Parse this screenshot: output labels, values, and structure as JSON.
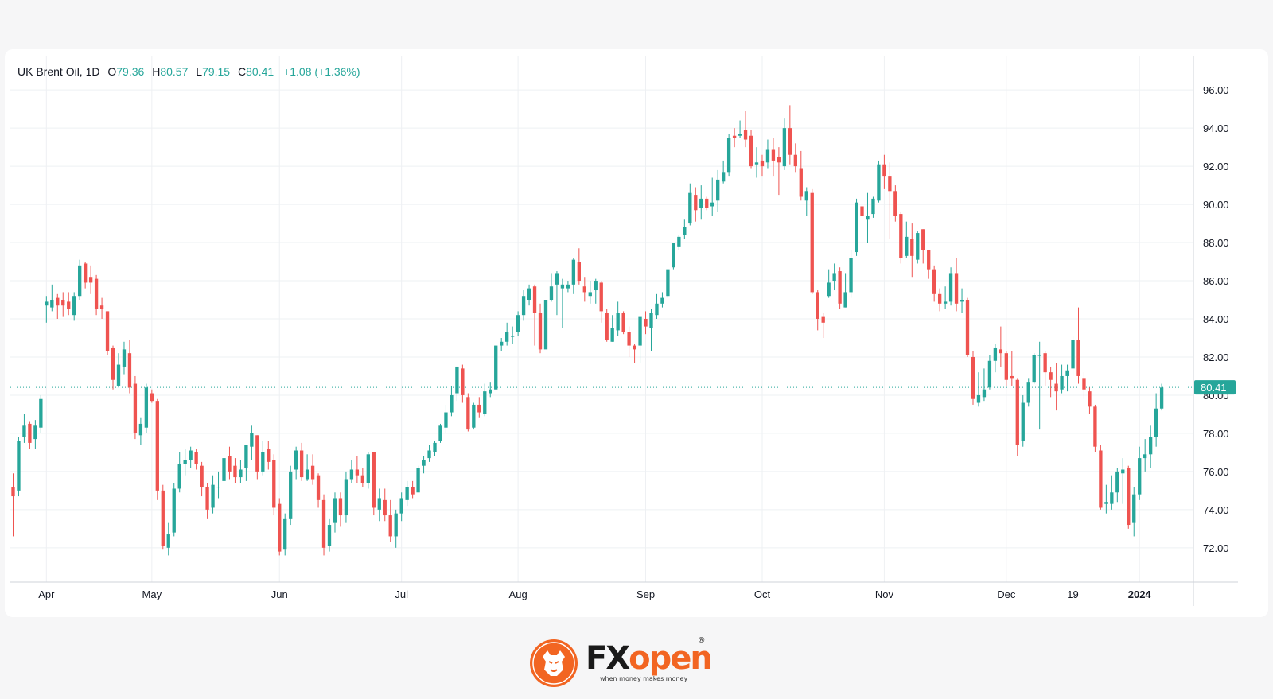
{
  "legend": {
    "symbol": "UK Brent Oil, 1D",
    "o_label": "O",
    "o_value": "79.36",
    "h_label": "H",
    "h_value": "80.57",
    "l_label": "L",
    "l_value": "79.15",
    "c_label": "C",
    "c_value": "80.41",
    "change": "+1.08 (+1.36%)"
  },
  "brand": {
    "name_part1": "FX",
    "name_part2": "open",
    "registered": "®",
    "tagline": "when money makes money"
  },
  "colors": {
    "up": "#26a69a",
    "down": "#ef5350",
    "brand_orange": "#f26522",
    "last_price_line": "#26a69a"
  },
  "chart_data": {
    "type": "candlestick",
    "ylim": [
      70.2,
      97.8
    ],
    "y_ticks": [
      "72.00",
      "74.00",
      "76.00",
      "78.00",
      "80.00",
      "82.00",
      "84.00",
      "86.00",
      "88.00",
      "90.00",
      "92.00",
      "94.00",
      "96.00"
    ],
    "x_ticks": [
      {
        "label": "Apr",
        "index": 6
      },
      {
        "label": "May",
        "index": 25
      },
      {
        "label": "Jun",
        "index": 48
      },
      {
        "label": "Jul",
        "index": 70
      },
      {
        "label": "Aug",
        "index": 91
      },
      {
        "label": "Sep",
        "index": 114
      },
      {
        "label": "Oct",
        "index": 135
      },
      {
        "label": "Nov",
        "index": 157
      },
      {
        "label": "Dec",
        "index": 179
      },
      {
        "label": "19",
        "index": 191
      },
      {
        "label": "2024",
        "index": 203
      }
    ],
    "last_price": 80.41,
    "last_price_label": "80.41",
    "grid": true,
    "candles": [
      [
        75.2,
        74.7,
        75.9,
        72.6
      ],
      [
        75.0,
        77.6,
        77.8,
        74.7
      ],
      [
        77.8,
        78.4,
        79.0,
        77.5
      ],
      [
        78.5,
        77.5,
        78.6,
        77.2
      ],
      [
        77.7,
        78.4,
        78.7,
        77.2
      ],
      [
        78.3,
        79.8,
        80.0,
        78.0
      ],
      [
        84.7,
        84.9,
        85.2,
        83.8
      ],
      [
        84.6,
        85.0,
        85.8,
        84.4
      ],
      [
        85.1,
        84.7,
        85.3,
        84.0
      ],
      [
        85.0,
        84.7,
        85.4,
        84.1
      ],
      [
        84.9,
        84.5,
        85.4,
        84.2
      ],
      [
        84.2,
        85.2,
        85.4,
        83.9
      ],
      [
        85.2,
        86.8,
        87.1,
        85.0
      ],
      [
        86.9,
        85.9,
        87.0,
        85.6
      ],
      [
        86.2,
        85.9,
        86.8,
        85.3
      ],
      [
        86.1,
        84.5,
        86.3,
        84.2
      ],
      [
        84.7,
        84.5,
        85.1,
        84.0
      ],
      [
        84.4,
        82.3,
        84.4,
        82.1
      ],
      [
        82.5,
        80.8,
        82.6,
        80.3
      ],
      [
        80.5,
        81.6,
        82.2,
        80.4
      ],
      [
        81.5,
        82.4,
        82.8,
        81.1
      ],
      [
        82.2,
        80.4,
        82.9,
        80.1
      ],
      [
        80.6,
        78.0,
        81.0,
        77.7
      ],
      [
        77.9,
        78.5,
        78.8,
        77.4
      ],
      [
        78.3,
        80.4,
        80.6,
        78.0
      ],
      [
        80.1,
        79.7,
        80.3,
        79.6
      ],
      [
        79.7,
        75.0,
        79.8,
        74.5
      ],
      [
        75.0,
        72.1,
        75.3,
        71.9
      ],
      [
        72.0,
        72.7,
        73.3,
        71.6
      ],
      [
        72.8,
        75.1,
        75.4,
        72.6
      ],
      [
        75.1,
        76.4,
        77.0,
        74.9
      ],
      [
        76.4,
        76.6,
        77.2,
        75.8
      ],
      [
        76.6,
        77.1,
        77.3,
        76.2
      ],
      [
        77.0,
        76.4,
        77.2,
        76.1
      ],
      [
        76.3,
        75.2,
        76.5,
        74.7
      ],
      [
        75.2,
        74.0,
        75.4,
        73.5
      ],
      [
        74.1,
        75.3,
        75.8,
        73.8
      ],
      [
        75.2,
        75.2,
        76.0,
        74.6
      ],
      [
        75.5,
        76.7,
        77.0,
        74.5
      ],
      [
        76.8,
        76.0,
        77.3,
        75.6
      ],
      [
        76.3,
        75.7,
        76.7,
        75.4
      ],
      [
        75.7,
        76.1,
        76.6,
        75.4
      ],
      [
        76.2,
        77.4,
        77.4,
        75.5
      ],
      [
        77.3,
        78.0,
        78.4,
        76.6
      ],
      [
        77.9,
        76.0,
        77.9,
        75.6
      ],
      [
        76.0,
        77.0,
        77.6,
        75.8
      ],
      [
        77.2,
        76.5,
        77.6,
        76.1
      ],
      [
        76.6,
        74.1,
        76.9,
        73.7
      ],
      [
        74.3,
        71.8,
        74.6,
        71.6
      ],
      [
        71.9,
        73.5,
        73.8,
        71.6
      ],
      [
        73.5,
        76.0,
        76.3,
        73.2
      ],
      [
        76.1,
        77.1,
        77.3,
        75.6
      ],
      [
        77.1,
        75.7,
        77.5,
        75.5
      ],
      [
        75.6,
        76.1,
        76.9,
        75.5
      ],
      [
        76.3,
        75.6,
        76.9,
        75.3
      ],
      [
        75.8,
        74.5,
        75.9,
        74.1
      ],
      [
        74.5,
        72.0,
        74.8,
        71.6
      ],
      [
        72.1,
        73.2,
        73.5,
        71.8
      ],
      [
        73.3,
        74.6,
        74.9,
        72.8
      ],
      [
        74.6,
        73.7,
        74.9,
        73.1
      ],
      [
        73.7,
        75.6,
        76.0,
        73.3
      ],
      [
        75.6,
        76.1,
        76.6,
        75.4
      ],
      [
        76.1,
        75.8,
        76.8,
        75.4
      ],
      [
        75.8,
        75.4,
        76.2,
        75.2
      ],
      [
        75.4,
        76.9,
        77.0,
        75.1
      ],
      [
        77.0,
        74.1,
        77.0,
        73.7
      ],
      [
        74.0,
        74.6,
        75.1,
        73.4
      ],
      [
        74.5,
        73.7,
        75.1,
        73.4
      ],
      [
        73.7,
        72.6,
        74.5,
        72.3
      ],
      [
        72.6,
        73.8,
        74.0,
        72.0
      ],
      [
        73.8,
        74.6,
        74.9,
        73.4
      ],
      [
        74.5,
        75.2,
        75.5,
        74.2
      ],
      [
        75.2,
        74.8,
        75.5,
        74.6
      ],
      [
        74.9,
        76.2,
        76.3,
        74.9
      ],
      [
        76.3,
        76.6,
        76.8,
        75.9
      ],
      [
        76.7,
        77.1,
        77.4,
        76.5
      ],
      [
        77.0,
        77.5,
        77.6,
        76.8
      ],
      [
        77.6,
        78.4,
        78.5,
        77.5
      ],
      [
        78.3,
        79.1,
        79.5,
        78.0
      ],
      [
        79.1,
        80.0,
        80.5,
        78.9
      ],
      [
        80.1,
        81.5,
        81.5,
        79.7
      ],
      [
        81.4,
        80.0,
        81.6,
        79.6
      ],
      [
        79.9,
        78.2,
        80.1,
        78.1
      ],
      [
        78.3,
        79.5,
        79.6,
        78.2
      ],
      [
        79.5,
        79.1,
        79.9,
        78.8
      ],
      [
        79.0,
        80.2,
        80.6,
        78.9
      ],
      [
        80.1,
        80.3,
        80.7,
        79.9
      ],
      [
        80.3,
        82.6,
        82.6,
        80.3
      ],
      [
        82.6,
        82.8,
        83.0,
        82.3
      ],
      [
        82.8,
        83.3,
        83.8,
        82.6
      ],
      [
        83.1,
        83.1,
        83.6,
        82.7
      ],
      [
        83.3,
        84.2,
        84.4,
        83.1
      ],
      [
        84.2,
        85.2,
        85.5,
        83.9
      ],
      [
        85.0,
        85.6,
        85.8,
        84.7
      ],
      [
        85.7,
        84.3,
        85.8,
        82.6
      ],
      [
        84.3,
        82.4,
        84.8,
        82.2
      ],
      [
        82.4,
        85.0,
        85.0,
        82.5
      ],
      [
        85.0,
        85.7,
        86.4,
        84.9
      ],
      [
        85.8,
        86.4,
        86.5,
        84.2
      ],
      [
        85.6,
        85.8,
        86.1,
        83.5
      ],
      [
        85.6,
        85.8,
        86.0,
        85.4
      ],
      [
        85.8,
        87.1,
        87.2,
        85.3
      ],
      [
        87.0,
        86.0,
        87.7,
        85.8
      ],
      [
        85.7,
        85.4,
        86.2,
        84.9
      ],
      [
        85.2,
        85.4,
        86.0,
        84.8
      ],
      [
        85.5,
        86.0,
        86.1,
        84.8
      ],
      [
        85.9,
        84.4,
        86.0,
        83.8
      ],
      [
        84.3,
        82.9,
        84.5,
        82.8
      ],
      [
        82.8,
        83.5,
        84.2,
        82.8
      ],
      [
        83.4,
        84.3,
        84.9,
        83.1
      ],
      [
        84.3,
        83.3,
        84.4,
        83.2
      ],
      [
        83.3,
        82.6,
        83.6,
        82.0
      ],
      [
        82.6,
        82.4,
        82.7,
        81.7
      ],
      [
        82.6,
        84.1,
        84.1,
        81.7
      ],
      [
        84.0,
        83.6,
        84.4,
        83.2
      ],
      [
        83.5,
        84.3,
        84.5,
        82.3
      ],
      [
        84.2,
        84.8,
        85.3,
        84.0
      ],
      [
        84.8,
        85.1,
        85.4,
        84.6
      ],
      [
        85.2,
        86.6,
        86.6,
        85.1
      ],
      [
        86.7,
        88.0,
        88.0,
        86.6
      ],
      [
        87.8,
        88.3,
        88.4,
        87.6
      ],
      [
        88.4,
        88.8,
        89.2,
        88.2
      ],
      [
        89.0,
        90.6,
        91.1,
        88.9
      ],
      [
        90.5,
        89.7,
        90.9,
        89.1
      ],
      [
        89.8,
        90.3,
        91.0,
        89.2
      ],
      [
        90.3,
        89.8,
        90.4,
        89.7
      ],
      [
        89.9,
        90.1,
        91.4,
        89.4
      ],
      [
        90.2,
        91.3,
        91.8,
        89.6
      ],
      [
        91.2,
        91.7,
        92.3,
        91.1
      ],
      [
        91.7,
        93.5,
        93.7,
        91.5
      ],
      [
        93.6,
        93.5,
        94.0,
        93.0
      ],
      [
        93.6,
        93.7,
        94.4,
        93.5
      ],
      [
        93.9,
        93.4,
        94.9,
        93.0
      ],
      [
        93.6,
        92.0,
        93.9,
        91.9
      ],
      [
        92.1,
        92.2,
        93.0,
        91.4
      ],
      [
        92.3,
        92.0,
        92.6,
        91.5
      ],
      [
        92.2,
        92.9,
        93.4,
        91.9
      ],
      [
        92.9,
        92.3,
        93.5,
        91.5
      ],
      [
        92.5,
        92.2,
        93.0,
        90.5
      ],
      [
        92.0,
        94.0,
        94.5,
        91.8
      ],
      [
        94.0,
        92.6,
        95.2,
        92.1
      ],
      [
        92.6,
        92.0,
        93.2,
        91.7
      ],
      [
        91.9,
        90.4,
        92.8,
        90.2
      ],
      [
        90.2,
        90.7,
        90.9,
        89.4
      ],
      [
        90.6,
        85.4,
        90.8,
        85.3
      ],
      [
        85.4,
        84.0,
        85.5,
        83.4
      ],
      [
        84.1,
        83.8,
        84.3,
        83.0
      ],
      [
        85.2,
        85.9,
        86.6,
        85.1
      ],
      [
        86.0,
        86.4,
        86.9,
        85.5
      ],
      [
        86.5,
        84.8,
        86.7,
        84.5
      ],
      [
        84.6,
        85.4,
        86.4,
        84.6
      ],
      [
        85.4,
        87.2,
        87.6,
        85.1
      ],
      [
        87.5,
        90.1,
        90.3,
        87.3
      ],
      [
        89.9,
        89.4,
        90.7,
        88.7
      ],
      [
        89.2,
        89.4,
        90.6,
        88.0
      ],
      [
        89.5,
        90.3,
        90.4,
        89.3
      ],
      [
        90.2,
        92.1,
        92.3,
        90.1
      ],
      [
        92.1,
        91.5,
        92.6,
        90.8
      ],
      [
        91.5,
        90.7,
        92.2,
        88.2
      ],
      [
        90.7,
        89.4,
        91.0,
        89.1
      ],
      [
        89.5,
        87.2,
        89.6,
        86.9
      ],
      [
        87.3,
        88.3,
        89.1,
        87.2
      ],
      [
        88.2,
        87.3,
        89.0,
        86.2
      ],
      [
        87.1,
        88.5,
        88.6,
        86.9
      ],
      [
        88.7,
        87.6,
        88.7,
        86.9
      ],
      [
        87.6,
        86.6,
        87.6,
        86.1
      ],
      [
        86.6,
        85.3,
        86.8,
        84.9
      ],
      [
        85.3,
        84.8,
        85.6,
        84.4
      ],
      [
        84.8,
        84.9,
        85.7,
        84.5
      ],
      [
        84.9,
        86.4,
        86.7,
        84.7
      ],
      [
        86.4,
        84.8,
        87.2,
        84.4
      ],
      [
        84.9,
        85.0,
        85.6,
        84.3
      ],
      [
        85.0,
        82.1,
        85.1,
        82.0
      ],
      [
        82.0,
        79.8,
        82.3,
        79.5
      ],
      [
        79.6,
        80.0,
        81.2,
        79.4
      ],
      [
        79.9,
        80.3,
        81.4,
        79.7
      ],
      [
        80.4,
        81.8,
        82.1,
        80.3
      ],
      [
        81.8,
        82.5,
        82.7,
        81.2
      ],
      [
        82.4,
        82.2,
        83.6,
        81.5
      ],
      [
        82.2,
        80.8,
        82.3,
        80.5
      ],
      [
        81.0,
        80.9,
        82.3,
        80.5
      ],
      [
        80.8,
        77.4,
        80.9,
        76.8
      ],
      [
        77.6,
        79.6,
        80.0,
        77.3
      ],
      [
        79.6,
        80.7,
        80.9,
        79.4
      ],
      [
        80.7,
        82.1,
        82.2,
        80.6
      ],
      [
        82.1,
        82.1,
        82.8,
        78.2
      ],
      [
        82.2,
        81.2,
        82.3,
        80.5
      ],
      [
        81.2,
        80.8,
        81.5,
        79.9
      ],
      [
        80.6,
        80.2,
        81.7,
        79.2
      ],
      [
        80.3,
        81.0,
        81.6,
        80.1
      ],
      [
        81.0,
        81.3,
        81.6,
        80.2
      ],
      [
        81.4,
        82.9,
        83.1,
        81.0
      ],
      [
        82.9,
        81.0,
        84.6,
        80.6
      ],
      [
        80.9,
        80.3,
        81.2,
        79.8
      ],
      [
        80.2,
        79.4,
        80.4,
        79.0
      ],
      [
        79.4,
        77.3,
        79.5,
        77.0
      ],
      [
        77.1,
        74.1,
        77.4,
        74.0
      ],
      [
        74.3,
        74.4,
        75.3,
        73.8
      ],
      [
        74.3,
        74.9,
        75.8,
        74.0
      ],
      [
        74.9,
        76.0,
        76.2,
        74.4
      ],
      [
        75.9,
        76.1,
        76.7,
        74.3
      ],
      [
        76.2,
        73.2,
        76.3,
        73.0
      ],
      [
        73.3,
        74.8,
        75.2,
        72.6
      ],
      [
        74.8,
        76.7,
        77.3,
        74.5
      ],
      [
        76.7,
        76.9,
        77.7,
        76.0
      ],
      [
        76.9,
        77.8,
        78.4,
        76.2
      ],
      [
        77.8,
        79.3,
        80.1,
        77.3
      ],
      [
        79.3,
        80.4,
        80.6,
        79.2
      ]
    ]
  }
}
